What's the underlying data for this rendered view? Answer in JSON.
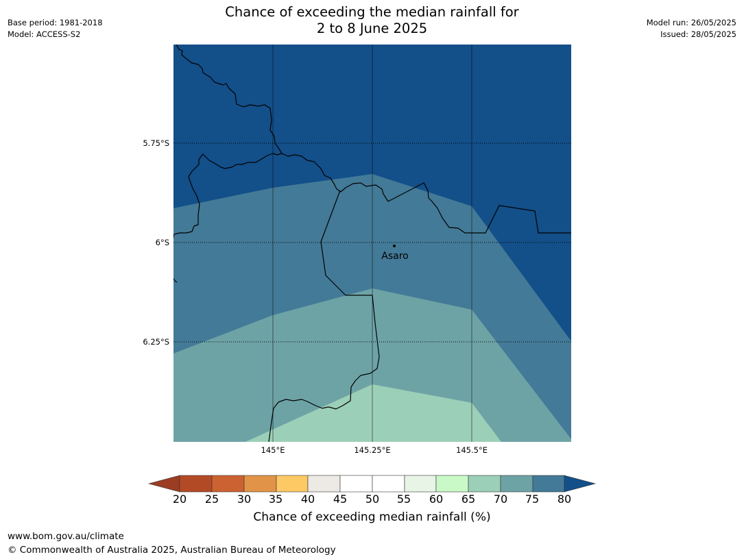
{
  "header": {
    "title_line1": "Chance of exceeding the median rainfall for",
    "title_line2": "2 to 8 June 2025",
    "base_period": "Base period: 1981-2018",
    "model": "Model: ACCESS-S2",
    "model_run": "Model run: 26/05/2025",
    "issued": "Issued: 28/05/2025"
  },
  "map": {
    "lat_labels": [
      "5.75°S",
      "6°S",
      "6.25°S"
    ],
    "lon_labels": [
      "145°E",
      "145.25°E",
      "145.5°E"
    ],
    "place": {
      "name": "Asaro",
      "lon": 145.31,
      "lat": -6.01
    },
    "legend_colors": {
      "below_20": "#9c3d23",
      "20_25": "#b34a26",
      "25_30": "#cc6231",
      "30_35": "#e19447",
      "35_40": "#fcc965",
      "40_45": "#ede9e4",
      "45_50": "#ffffff",
      "50_55": "#ffffff",
      "55_60": "#e8f5e6",
      "60_65": "#caf9c8",
      "65_70": "#9ccfb7",
      "70_75": "#6ea3a6",
      "75_80": "#437a97",
      "above_80": "#134f89"
    }
  },
  "colorbar": {
    "ticks": [
      "20",
      "25",
      "30",
      "35",
      "40",
      "45",
      "50",
      "55",
      "60",
      "65",
      "70",
      "75",
      "80"
    ],
    "label": "Chance of exceeding median rainfall (%)"
  },
  "footer": {
    "website": "www.bom.gov.au/climate",
    "copyright": "© Commonwealth of Australia 2025, Australian Bureau of Meteorology"
  }
}
